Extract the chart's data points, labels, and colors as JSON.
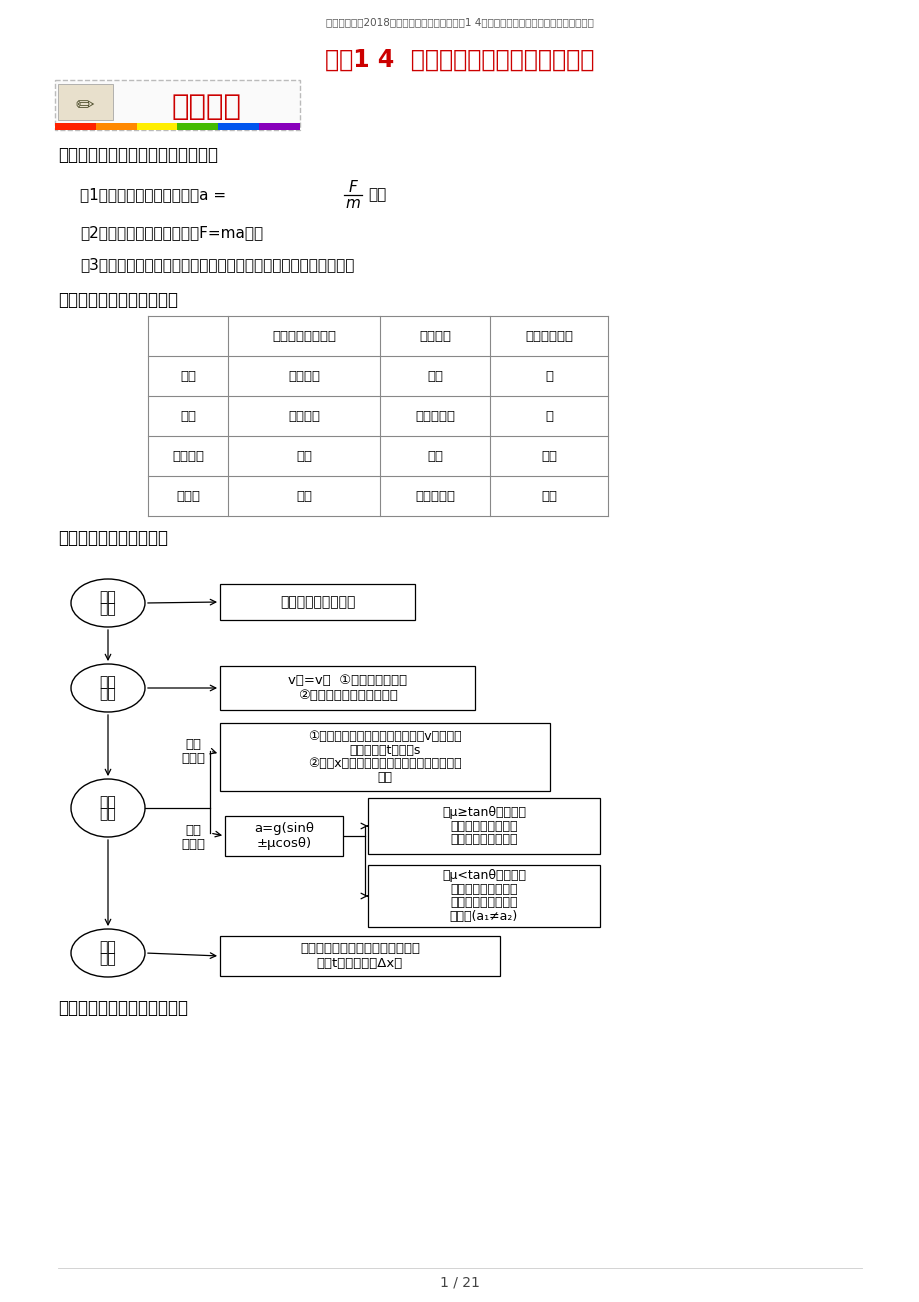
{
  "bg_color": "#ffffff",
  "header_text": "（全国通用）2018年高考物理考点一遗过专题1 4用牛顿第二定律解决两类问题（含解析）",
  "title": "专题1 4  用牛顿第二定律解决两类问题",
  "sec1": "一、用牛顿第二定律解决动力学问题",
  "item1a": "（1）从受力确定运动情况（a =",
  "item1b": "）。",
  "item2": "（2）从运动情况确定受力（F=ma）。",
  "item3": "（3）综合受力分析和运动状态分析，运用牛顿第二定律解决问题。",
  "sec2": "二、瞬时变化的动力学模型",
  "table_headers": [
    "",
    "受外力时的形变量",
    "纵向弹力",
    "弹力能否突变"
  ],
  "table_rows": [
    [
      "轻绳",
      "微小不计",
      "拉力",
      "能"
    ],
    [
      "轻杆",
      "微小不计",
      "拉力或压力",
      "能"
    ],
    [
      "轻橡皮绳",
      "较大",
      "拉力",
      "不能"
    ],
    [
      "轻弹簧",
      "较大",
      "拉力或压力",
      "不能"
    ]
  ],
  "sec3": "三、传送带模型分析方法",
  "sec4": "四、滑块－木板模型分析方法",
  "page_footer": "1 / 21",
  "fc": {
    "e1_text": [
      "研究",
      "对象"
    ],
    "b1_text": "传送带及其上的物体",
    "e2_text": [
      "临界",
      "状态"
    ],
    "b2_line1": "v物=v带  ①摩擦力发生突变",
    "b2_line2": "②物体的运动状态发生改变",
    "e3_text": [
      "力与",
      "运动"
    ],
    "label_hz1": "水平",
    "label_hz2": "传送带",
    "b3_lines": [
      "①根据物体的受力和传送带的速度v计算物体",
      "加速的时间t和位移s",
      "②再由x和传送带长度的关系判断物体的运动",
      "形式"
    ],
    "label_qx1": "倒斜",
    "label_qx2": "传送带",
    "ab_lines": [
      "a=g(sinθ",
      "±μcosθ)"
    ],
    "rb1_lines": [
      "若μ≥tanθ，且物体",
      "能与传送带共速，则",
      "共速后物体匀速运动"
    ],
    "rb2_lines": [
      "若μ<tanθ，且物体",
      "能与传送带共速，则",
      "共速后物体相对传送",
      "带加速(a₁≠a₂)"
    ],
    "e4_text": [
      "结果",
      "计算"
    ],
    "b4_lines": [
      "进一步计算物体在传送带上的运动",
      "时间t、相对位移Δx等"
    ]
  }
}
